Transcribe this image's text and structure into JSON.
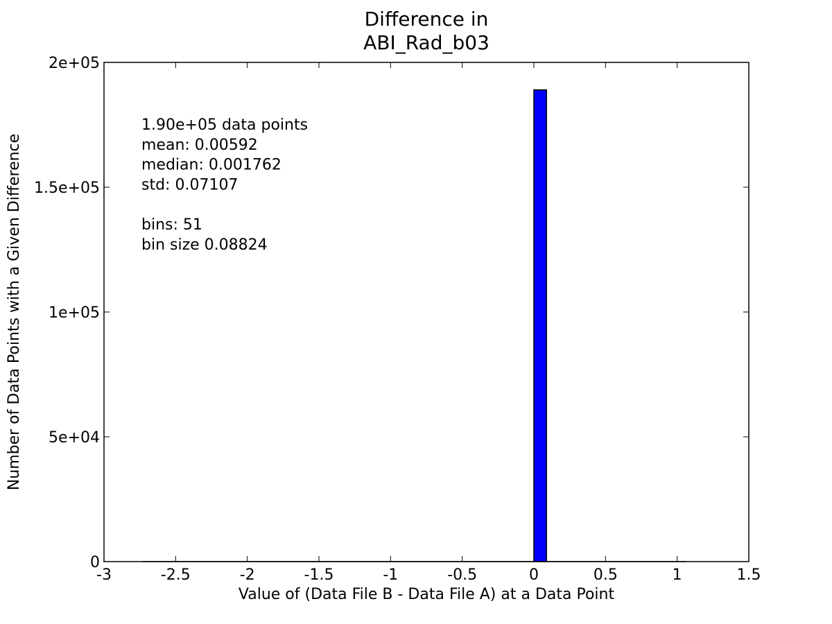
{
  "chart_data": {
    "type": "bar",
    "title": [
      "Difference in",
      "ABI_Rad_b03"
    ],
    "xlabel": "Value of (Data File B - Data File A) at a Data Point",
    "ylabel": "Number of Data Points with a Given Difference",
    "xlim": [
      -3,
      1.5
    ],
    "ylim": [
      0,
      200000
    ],
    "xticks": [
      {
        "value": -3,
        "label": "-3"
      },
      {
        "value": -2.5,
        "label": "-2.5"
      },
      {
        "value": -2,
        "label": "-2"
      },
      {
        "value": -1.5,
        "label": "-1.5"
      },
      {
        "value": -1,
        "label": "-1"
      },
      {
        "value": -0.5,
        "label": "-0.5"
      },
      {
        "value": 0,
        "label": "0"
      },
      {
        "value": 0.5,
        "label": "0.5"
      },
      {
        "value": 1,
        "label": "1"
      },
      {
        "value": 1.5,
        "label": "1.5"
      }
    ],
    "yticks": [
      {
        "value": 0,
        "label": "0"
      },
      {
        "value": 50000,
        "label": "5e+04"
      },
      {
        "value": 100000,
        "label": "1e+05"
      },
      {
        "value": 150000,
        "label": "1.5e+05"
      },
      {
        "value": 200000,
        "label": "2e+05"
      }
    ],
    "grid": false,
    "bar_color": "#0000ff",
    "edge_color": "#000000",
    "bins": [
      {
        "x0": -2.7353,
        "x1": 0.0,
        "count": 0
      },
      {
        "x0": 0.0,
        "x1": 0.0882,
        "count": 189000
      },
      {
        "x0": 0.0882,
        "x1": 1.0588,
        "count": 0
      }
    ],
    "annotation_lines": [
      "1.90e+05 data points",
      "mean: 0.00592",
      "median: 0.001762",
      "std: 0.07107",
      "",
      "bins: 51",
      "bin size 0.08824"
    ]
  }
}
